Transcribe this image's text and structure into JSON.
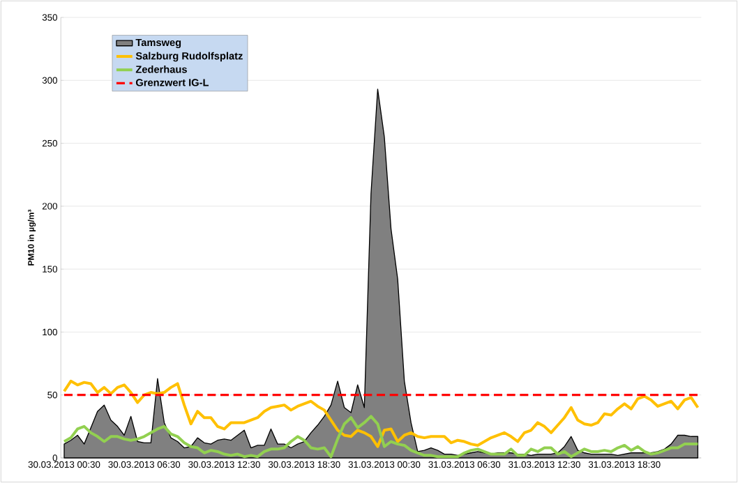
{
  "chart_data": {
    "type": "line",
    "ylabel": "PM10 in µg/m³",
    "categories": [
      "30.03.2013 00:30",
      null,
      null,
      null,
      null,
      null,
      null,
      null,
      null,
      null,
      null,
      null,
      "30.03.2013 06:30",
      null,
      null,
      null,
      null,
      null,
      null,
      null,
      null,
      null,
      null,
      null,
      "30.03.2013 12:30",
      null,
      null,
      null,
      null,
      null,
      null,
      null,
      null,
      null,
      null,
      null,
      "30.03.2013 18:30",
      null,
      null,
      null,
      null,
      null,
      null,
      null,
      null,
      null,
      null,
      null,
      "31.03.2013 00:30",
      null,
      null,
      null,
      null,
      null,
      null,
      null,
      null,
      null,
      null,
      null,
      "31.03.2013 06:30",
      null,
      null,
      null,
      null,
      null,
      null,
      null,
      null,
      null,
      null,
      null,
      "31.03.2013 12:30",
      null,
      null,
      null,
      null,
      null,
      null,
      null,
      null,
      null,
      null,
      null,
      "31.03.2013 18:30",
      null,
      null,
      null,
      null,
      null,
      null,
      null,
      null,
      null,
      null,
      null
    ],
    "series": [
      {
        "name": "Tamsweg",
        "type": "area",
        "color": "#808080",
        "values": [
          11,
          14,
          18,
          11,
          24,
          37,
          42,
          30,
          25,
          18,
          33,
          13,
          12,
          12,
          63,
          28,
          16,
          13,
          8,
          9,
          16,
          12,
          11,
          14,
          15,
          14,
          18,
          22,
          8,
          10,
          10,
          23,
          11,
          11,
          8,
          11,
          13,
          20,
          26,
          33,
          42,
          61,
          40,
          36,
          58,
          40,
          210,
          293,
          255,
          182,
          142,
          61,
          28,
          5,
          6,
          8,
          6,
          3,
          3,
          2,
          3,
          4,
          5,
          4,
          3,
          4,
          4,
          4,
          3,
          3,
          2,
          3,
          3,
          3,
          4,
          9,
          17,
          6,
          4,
          3,
          3,
          3,
          3,
          2,
          3,
          4,
          4,
          4,
          4,
          5,
          7,
          11,
          18,
          18,
          17,
          17
        ]
      },
      {
        "name": "Salzburg Rudolfsplatz",
        "color": "#ffc000",
        "values": [
          53,
          61,
          58,
          60,
          59,
          52,
          56,
          51,
          56,
          58,
          52,
          44,
          50,
          52,
          51,
          52,
          56,
          59,
          42,
          27,
          37,
          32,
          32,
          25,
          23,
          28,
          28,
          28,
          30,
          32,
          37,
          40,
          41,
          42,
          38,
          41,
          43,
          45,
          41,
          38,
          30,
          22,
          18,
          17,
          22,
          20,
          17,
          9,
          22,
          23,
          13,
          18,
          20,
          17,
          16,
          17,
          17,
          17,
          12,
          14,
          13,
          11,
          10,
          13,
          16,
          18,
          20,
          17,
          13,
          20,
          22,
          28,
          25,
          20,
          26,
          32,
          40,
          30,
          27,
          26,
          28,
          35,
          34,
          39,
          43,
          39,
          47,
          49,
          46,
          41,
          43,
          45,
          39,
          46,
          48,
          40
        ]
      },
      {
        "name": "Zederhaus",
        "color": "#92d050",
        "values": [
          13,
          16,
          23,
          25,
          20,
          17,
          13,
          17,
          17,
          15,
          14,
          15,
          17,
          20,
          23,
          25,
          19,
          17,
          12,
          9,
          8,
          4,
          6,
          5,
          3,
          2,
          3,
          1,
          2,
          1,
          5,
          7,
          7,
          8,
          13,
          17,
          14,
          8,
          7,
          8,
          1,
          15,
          27,
          32,
          24,
          28,
          33,
          27,
          9,
          13,
          11,
          10,
          6,
          4,
          2,
          2,
          1,
          1,
          1,
          1,
          4,
          6,
          7,
          5,
          3,
          3,
          3,
          7,
          2,
          2,
          7,
          5,
          8,
          8,
          3,
          5,
          1,
          4,
          7,
          5,
          5,
          6,
          5,
          8,
          10,
          6,
          9,
          5,
          3,
          4,
          6,
          8,
          8,
          11,
          11,
          11
        ]
      }
    ],
    "ref_lines": [
      {
        "axis": "y",
        "value": 50,
        "label": "Grenzwert IG-L",
        "color": "#ff0000",
        "line_style": "dashed"
      }
    ],
    "ylim": [
      0,
      350
    ],
    "yticks": [
      0,
      50,
      100,
      150,
      200,
      250,
      300,
      350
    ],
    "grid": "y",
    "legend": "top left",
    "marker": "none",
    "line_style": "solid"
  }
}
